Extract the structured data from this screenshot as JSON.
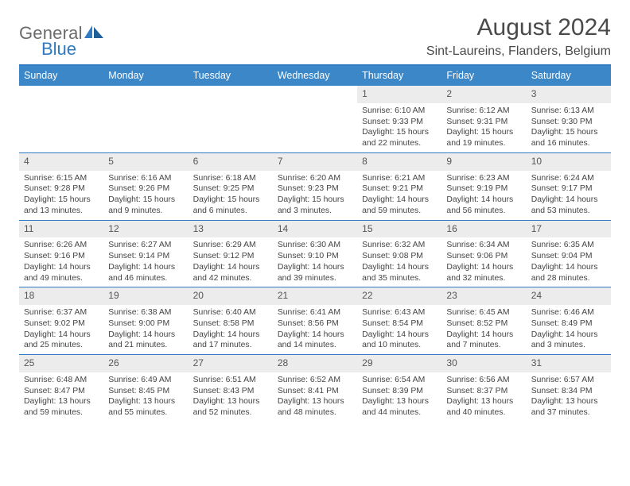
{
  "brand": {
    "word1": "General",
    "word2": "Blue"
  },
  "title": "August 2024",
  "location": "Sint-Laureins, Flanders, Belgium",
  "colors": {
    "header_bar": "#3b87c8",
    "rule": "#2f7ac0",
    "daynum_bg": "#ececec",
    "text": "#444444",
    "title_text": "#4a4a4a"
  },
  "daynames": [
    "Sunday",
    "Monday",
    "Tuesday",
    "Wednesday",
    "Thursday",
    "Friday",
    "Saturday"
  ],
  "leading_blanks": 4,
  "days": [
    {
      "n": "1",
      "sunrise": "6:10 AM",
      "sunset": "9:33 PM",
      "dl": "15 hours and 22 minutes."
    },
    {
      "n": "2",
      "sunrise": "6:12 AM",
      "sunset": "9:31 PM",
      "dl": "15 hours and 19 minutes."
    },
    {
      "n": "3",
      "sunrise": "6:13 AM",
      "sunset": "9:30 PM",
      "dl": "15 hours and 16 minutes."
    },
    {
      "n": "4",
      "sunrise": "6:15 AM",
      "sunset": "9:28 PM",
      "dl": "15 hours and 13 minutes."
    },
    {
      "n": "5",
      "sunrise": "6:16 AM",
      "sunset": "9:26 PM",
      "dl": "15 hours and 9 minutes."
    },
    {
      "n": "6",
      "sunrise": "6:18 AM",
      "sunset": "9:25 PM",
      "dl": "15 hours and 6 minutes."
    },
    {
      "n": "7",
      "sunrise": "6:20 AM",
      "sunset": "9:23 PM",
      "dl": "15 hours and 3 minutes."
    },
    {
      "n": "8",
      "sunrise": "6:21 AM",
      "sunset": "9:21 PM",
      "dl": "14 hours and 59 minutes."
    },
    {
      "n": "9",
      "sunrise": "6:23 AM",
      "sunset": "9:19 PM",
      "dl": "14 hours and 56 minutes."
    },
    {
      "n": "10",
      "sunrise": "6:24 AM",
      "sunset": "9:17 PM",
      "dl": "14 hours and 53 minutes."
    },
    {
      "n": "11",
      "sunrise": "6:26 AM",
      "sunset": "9:16 PM",
      "dl": "14 hours and 49 minutes."
    },
    {
      "n": "12",
      "sunrise": "6:27 AM",
      "sunset": "9:14 PM",
      "dl": "14 hours and 46 minutes."
    },
    {
      "n": "13",
      "sunrise": "6:29 AM",
      "sunset": "9:12 PM",
      "dl": "14 hours and 42 minutes."
    },
    {
      "n": "14",
      "sunrise": "6:30 AM",
      "sunset": "9:10 PM",
      "dl": "14 hours and 39 minutes."
    },
    {
      "n": "15",
      "sunrise": "6:32 AM",
      "sunset": "9:08 PM",
      "dl": "14 hours and 35 minutes."
    },
    {
      "n": "16",
      "sunrise": "6:34 AM",
      "sunset": "9:06 PM",
      "dl": "14 hours and 32 minutes."
    },
    {
      "n": "17",
      "sunrise": "6:35 AM",
      "sunset": "9:04 PM",
      "dl": "14 hours and 28 minutes."
    },
    {
      "n": "18",
      "sunrise": "6:37 AM",
      "sunset": "9:02 PM",
      "dl": "14 hours and 25 minutes."
    },
    {
      "n": "19",
      "sunrise": "6:38 AM",
      "sunset": "9:00 PM",
      "dl": "14 hours and 21 minutes."
    },
    {
      "n": "20",
      "sunrise": "6:40 AM",
      "sunset": "8:58 PM",
      "dl": "14 hours and 17 minutes."
    },
    {
      "n": "21",
      "sunrise": "6:41 AM",
      "sunset": "8:56 PM",
      "dl": "14 hours and 14 minutes."
    },
    {
      "n": "22",
      "sunrise": "6:43 AM",
      "sunset": "8:54 PM",
      "dl": "14 hours and 10 minutes."
    },
    {
      "n": "23",
      "sunrise": "6:45 AM",
      "sunset": "8:52 PM",
      "dl": "14 hours and 7 minutes."
    },
    {
      "n": "24",
      "sunrise": "6:46 AM",
      "sunset": "8:49 PM",
      "dl": "14 hours and 3 minutes."
    },
    {
      "n": "25",
      "sunrise": "6:48 AM",
      "sunset": "8:47 PM",
      "dl": "13 hours and 59 minutes."
    },
    {
      "n": "26",
      "sunrise": "6:49 AM",
      "sunset": "8:45 PM",
      "dl": "13 hours and 55 minutes."
    },
    {
      "n": "27",
      "sunrise": "6:51 AM",
      "sunset": "8:43 PM",
      "dl": "13 hours and 52 minutes."
    },
    {
      "n": "28",
      "sunrise": "6:52 AM",
      "sunset": "8:41 PM",
      "dl": "13 hours and 48 minutes."
    },
    {
      "n": "29",
      "sunrise": "6:54 AM",
      "sunset": "8:39 PM",
      "dl": "13 hours and 44 minutes."
    },
    {
      "n": "30",
      "sunrise": "6:56 AM",
      "sunset": "8:37 PM",
      "dl": "13 hours and 40 minutes."
    },
    {
      "n": "31",
      "sunrise": "6:57 AM",
      "sunset": "8:34 PM",
      "dl": "13 hours and 37 minutes."
    }
  ],
  "labels": {
    "sunrise": "Sunrise: ",
    "sunset": "Sunset: ",
    "daylight": "Daylight: "
  }
}
